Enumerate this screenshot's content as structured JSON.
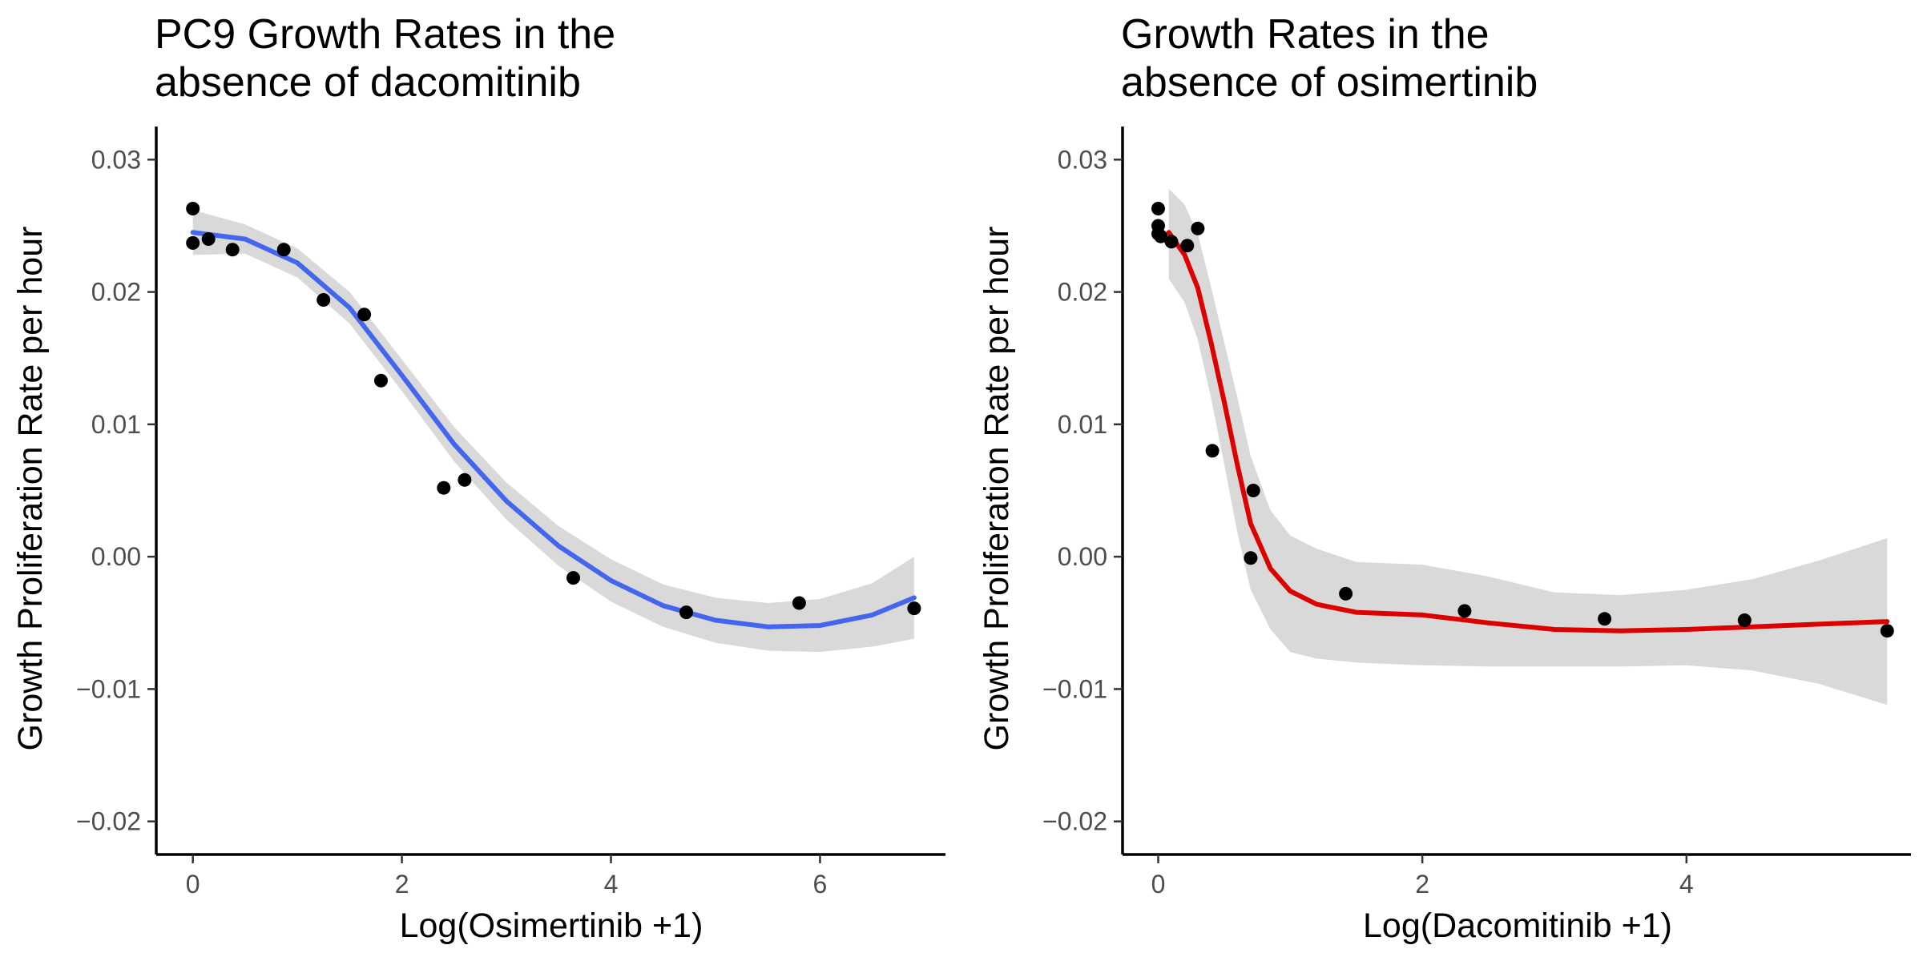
{
  "chart_data": [
    {
      "type": "scatter",
      "title": "PC9 Growth Rates in the\nabsence of dacomitinib",
      "xlabel": "Log(Osimertinib +1)",
      "ylabel": "Growth Proliferation Rate per hour",
      "xlim": [
        -0.35,
        7.2
      ],
      "ylim": [
        -0.0225,
        0.0325
      ],
      "xticks": [
        0,
        2,
        4,
        6
      ],
      "xtick_labels": [
        "0",
        "2",
        "4",
        "6"
      ],
      "yticks": [
        -0.02,
        -0.01,
        0.0,
        0.01,
        0.02,
        0.03
      ],
      "ytick_labels": [
        "−0.02",
        "−0.01",
        "0.00",
        "0.01",
        "0.02",
        "0.03"
      ],
      "grid": false,
      "points": {
        "x": [
          0.0,
          0.0,
          0.15,
          0.38,
          0.87,
          1.25,
          1.64,
          1.8,
          2.4,
          2.6,
          3.64,
          4.72,
          5.8,
          6.9
        ],
        "y": [
          0.0263,
          0.0237,
          0.024,
          0.0232,
          0.0232,
          0.0194,
          0.0183,
          0.0133,
          0.0052,
          0.0058,
          -0.0016,
          -0.0042,
          -0.0035,
          -0.0039
        ]
      },
      "smooth": {
        "color": "#4466ee",
        "x": [
          0,
          0.5,
          1.0,
          1.5,
          2.0,
          2.5,
          3.0,
          3.5,
          4.0,
          4.5,
          5.0,
          5.5,
          6.0,
          6.5,
          6.9
        ],
        "y": [
          0.0245,
          0.024,
          0.0222,
          0.0188,
          0.0137,
          0.0085,
          0.0042,
          0.0008,
          -0.0018,
          -0.0037,
          -0.0048,
          -0.0053,
          -0.0052,
          -0.0044,
          -0.0031
        ],
        "ci_lower": [
          0.0228,
          0.0229,
          0.0211,
          0.0176,
          0.0125,
          0.0072,
          0.0028,
          -0.0007,
          -0.0034,
          -0.0053,
          -0.0065,
          -0.0071,
          -0.0072,
          -0.0068,
          -0.0062
        ],
        "ci_upper": [
          0.0262,
          0.0251,
          0.0233,
          0.02,
          0.0149,
          0.0098,
          0.0056,
          0.0023,
          -0.0002,
          -0.0021,
          -0.0031,
          -0.0035,
          -0.0032,
          -0.002,
          0.0
        ]
      }
    },
    {
      "type": "scatter",
      "title": "Growth Rates in the\nabsence of osimertinib",
      "xlabel": "Log(Dacomitinib +1)",
      "ylabel": "Growth Proliferation Rate per hour",
      "xlim": [
        -0.27,
        5.7
      ],
      "ylim": [
        -0.0225,
        0.0325
      ],
      "xticks": [
        0,
        2,
        4
      ],
      "xtick_labels": [
        "0",
        "2",
        "4"
      ],
      "yticks": [
        -0.02,
        -0.01,
        0.0,
        0.01,
        0.02,
        0.03
      ],
      "ytick_labels": [
        "−0.02",
        "−0.01",
        "0.00",
        "0.01",
        "0.02",
        "0.03"
      ],
      "grid": false,
      "points": {
        "x": [
          0.0,
          0.0,
          0.0,
          0.02,
          0.1,
          0.22,
          0.3,
          0.41,
          0.7,
          0.72,
          1.42,
          2.32,
          3.38,
          4.44,
          5.52
        ],
        "y": [
          0.0263,
          0.025,
          0.0244,
          0.0242,
          0.0238,
          0.0235,
          0.0248,
          0.008,
          -0.0001,
          0.005,
          -0.0028,
          -0.0041,
          -0.0047,
          -0.0048,
          -0.0056
        ]
      },
      "smooth": {
        "color": "#dd0000",
        "x": [
          0.08,
          0.2,
          0.3,
          0.4,
          0.5,
          0.6,
          0.7,
          0.85,
          1.0,
          1.2,
          1.5,
          2.0,
          2.5,
          3.0,
          3.5,
          4.0,
          4.5,
          5.0,
          5.52
        ],
        "y": [
          0.0245,
          0.0228,
          0.0203,
          0.0162,
          0.0117,
          0.0069,
          0.0025,
          -0.0009,
          -0.0026,
          -0.0036,
          -0.0042,
          -0.0044,
          -0.005,
          -0.0055,
          -0.0056,
          -0.0055,
          -0.0053,
          -0.0051,
          -0.0049
        ],
        "ci_lower": [
          0.021,
          0.0192,
          0.0164,
          0.012,
          0.007,
          0.0018,
          -0.0025,
          -0.0055,
          -0.0072,
          -0.0077,
          -0.008,
          -0.0082,
          -0.0083,
          -0.0083,
          -0.0083,
          -0.0082,
          -0.0086,
          -0.0096,
          -0.0112
        ],
        "ci_upper": [
          0.0278,
          0.0266,
          0.0244,
          0.0204,
          0.0162,
          0.012,
          0.0076,
          0.0035,
          0.0016,
          0.0006,
          -0.0004,
          -0.0006,
          -0.0015,
          -0.0027,
          -0.0029,
          -0.0025,
          -0.0017,
          -0.0003,
          0.0014
        ]
      }
    }
  ]
}
